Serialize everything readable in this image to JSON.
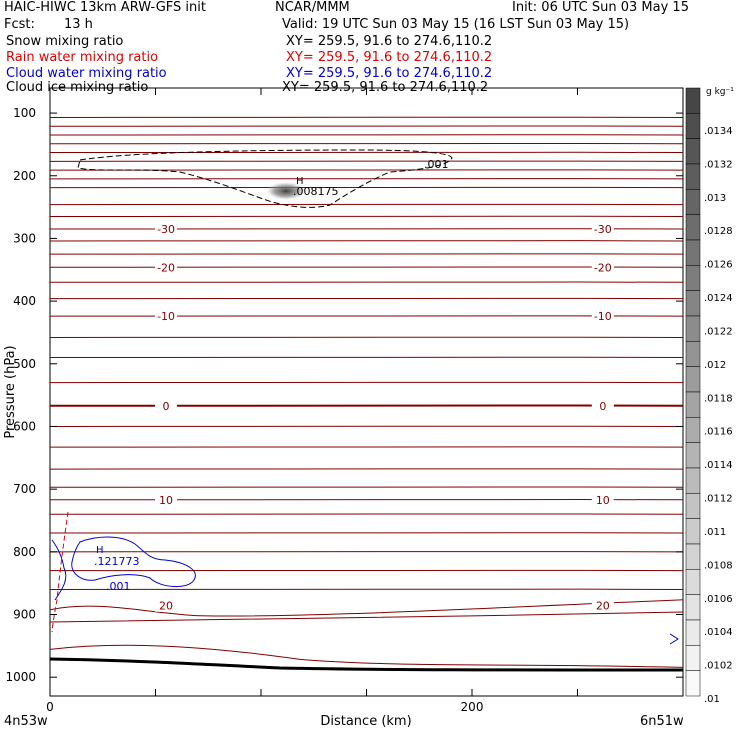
{
  "header": {
    "model": "HAIC-HIWC 13km ARW-GFS init",
    "center": "NCAR/MMM",
    "init": "Init: 06 UTC Sun 03 May 15",
    "fcst_label": "Fcst:",
    "fcst_value": "13 h",
    "valid": "Valid: 19 UTC Sun 03 May 15 (16 LST Sun 03 May 15)",
    "fields": [
      {
        "name": "Snow mixing ratio",
        "xy": "XY= 259.5, 91.6 to 274.6,110.2",
        "color": "#000000"
      },
      {
        "name": "Rain water mixing ratio",
        "xy": "XY= 259.5, 91.6 to 274.6,110.2",
        "color": "#e00000"
      },
      {
        "name": "Cloud water mixing ratio",
        "xy": "XY= 259.5, 91.6 to 274.6,110.2",
        "color": "#0000d0"
      },
      {
        "name": "Cloud ice mixing ratio",
        "xy": "XY= 259.5, 91.6 to 274.6,110.2",
        "color": "#000000"
      }
    ]
  },
  "chart_data": {
    "type": "cross-section contour",
    "ylabel": "Pressure (hPa)",
    "xlabel": "Distance (km)",
    "x_start_label": "4n53w",
    "x_end_label": "6n51w",
    "xlim": [
      0,
      300
    ],
    "ylim": [
      1030,
      60
    ],
    "x_ticks": [
      0,
      200
    ],
    "y_ticks": [
      100,
      200,
      300,
      400,
      500,
      600,
      700,
      800,
      900,
      1000
    ],
    "temperature_color": "#800000",
    "temperature_isotherms": [
      {
        "label": "-30",
        "p": 285
      },
      {
        "label": "-20",
        "p": 346
      },
      {
        "label": "-10",
        "p": 424
      },
      {
        "label": "0",
        "p": 567
      },
      {
        "label": "10",
        "p": 717
      },
      {
        "label": "20",
        "p": 886
      }
    ],
    "temperature_labels_left_x": 55,
    "temperature_labels_right_x": 262,
    "cloud_ice_max": {
      "label": "H",
      "value": ".008175",
      "x": 122,
      "p": 218
    },
    "cloud_ice_contour_label": ".001",
    "cloud_water_max": {
      "label": "H",
      "value": ".121773",
      "x": 25,
      "p": 830
    },
    "cloud_water_contour_label": ".001",
    "ground_color": "#000000",
    "colorbar": {
      "unit": "g kg⁻¹",
      "labels": [
        ".0134",
        ".0132",
        ".013",
        ".0128",
        ".0126",
        ".0124",
        ".0122",
        ".012",
        ".0118",
        ".0116",
        ".0114",
        ".0112",
        ".011",
        ".0108",
        ".0106",
        ".0104",
        ".0102",
        ".01"
      ]
    }
  }
}
